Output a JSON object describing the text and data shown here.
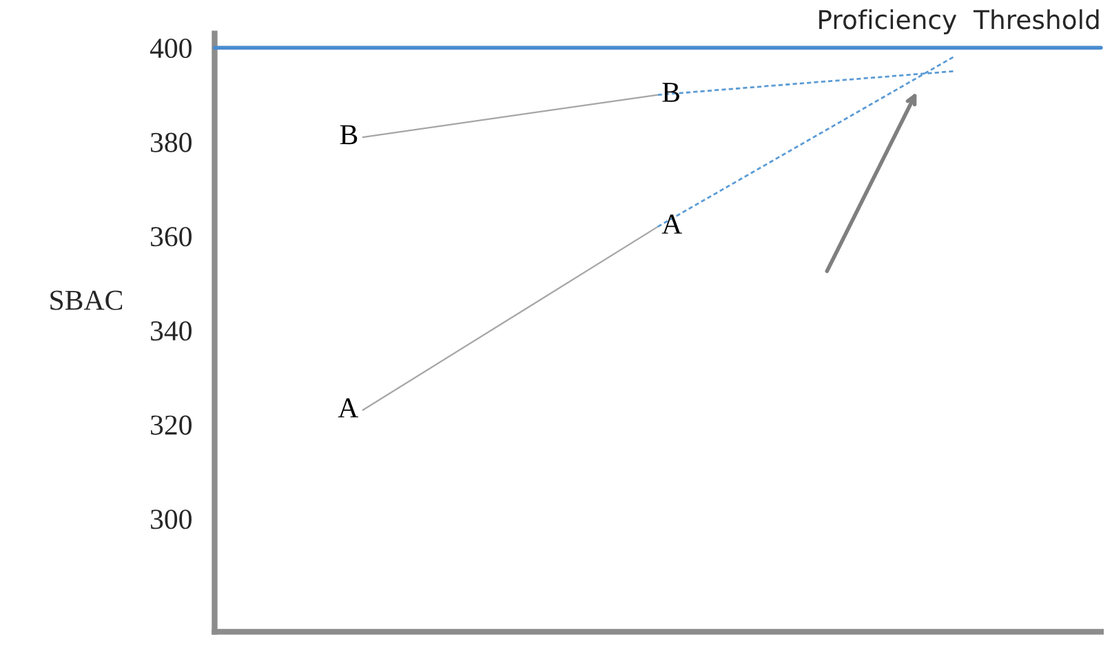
{
  "chart_data": {
    "type": "line",
    "ylabel": "SBAC",
    "categories": [
      null,
      null,
      null
    ],
    "series": [
      {
        "name": "A",
        "color": "#a6a6a6",
        "values": [
          323,
          362,
          null
        ],
        "line_style": "solid"
      },
      {
        "name": "B",
        "color": "#a6a6a6",
        "values": [
          381,
          390,
          null
        ],
        "line_style": "solid"
      },
      {
        "color": "#5b9bd5",
        "values": [
          null,
          362,
          398
        ],
        "line_style": "dashed"
      },
      {
        "color": "#5b9bd5",
        "values": [
          null,
          390,
          395
        ],
        "line_style": "dashed"
      }
    ],
    "ylim": [
      276,
      403
    ],
    "yticks": [
      300,
      320,
      340,
      360,
      380,
      400
    ],
    "ref_lines": [
      {
        "axis": "y",
        "value": 400,
        "label": "Proficiency  Threshold",
        "color": "#4a8ccf",
        "line_style": "solid"
      }
    ],
    "tick_labels": "y",
    "grid": false,
    "legend": false,
    "marker": "none"
  }
}
